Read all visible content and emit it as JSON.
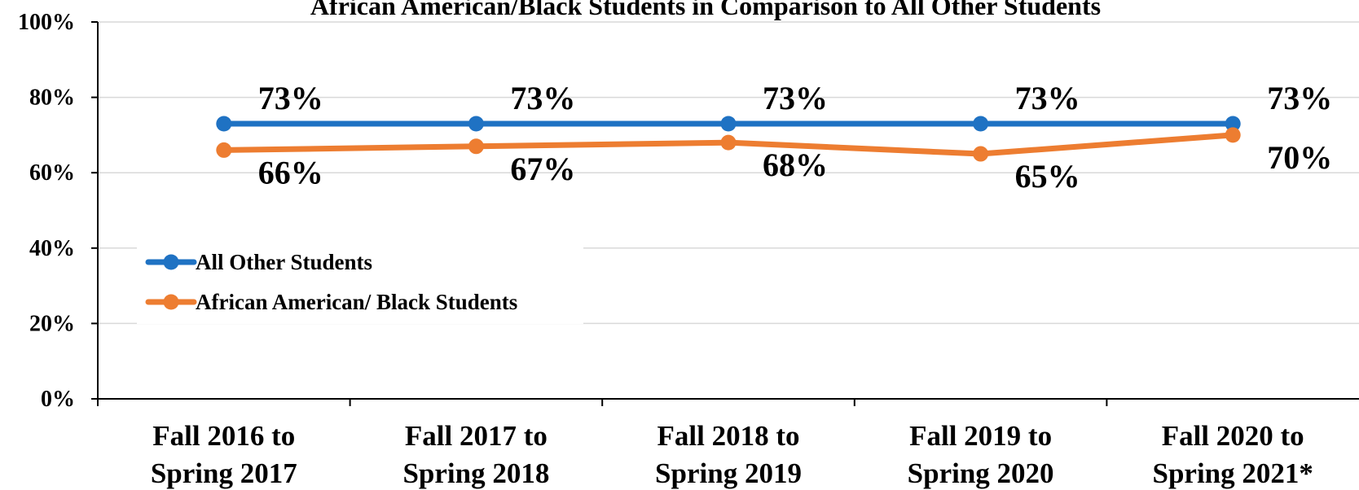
{
  "chart_data": {
    "type": "line",
    "title": "African American/Black Students in Comparison to All Other Students",
    "categories": [
      [
        "Fall 2016 to",
        "Spring 2017"
      ],
      [
        "Fall 2017 to",
        "Spring 2018"
      ],
      [
        "Fall 2018 to",
        "Spring 2019"
      ],
      [
        "Fall 2019 to",
        "Spring 2020"
      ],
      [
        "Fall 2020 to",
        "Spring 2021*"
      ]
    ],
    "series": [
      {
        "name": "All Other Students",
        "values": [
          73,
          73,
          73,
          73,
          73
        ],
        "labels": [
          "73%",
          "73%",
          "73%",
          "73%",
          "73%"
        ],
        "color": "#1F72C3"
      },
      {
        "name": "African American/ Black Students",
        "values": [
          66,
          67,
          68,
          65,
          70
        ],
        "labels": [
          "66%",
          "67%",
          "68%",
          "65%",
          "70%"
        ],
        "color": "#ED7D31"
      }
    ],
    "yticks": [
      "0%",
      "20%",
      "40%",
      "60%",
      "80%",
      "100%"
    ],
    "ylim": [
      0,
      100
    ],
    "grid": true,
    "legend_position": "left-middle"
  }
}
